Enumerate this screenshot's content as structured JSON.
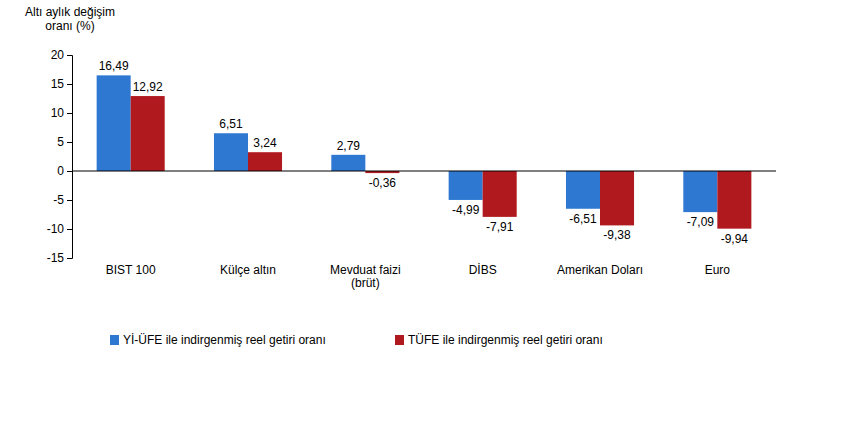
{
  "chart_data": {
    "type": "bar",
    "ylabel": "Altı aylık değişim oranı (%)",
    "categories": [
      "BIST 100",
      "Külçe altın",
      "Mevduat faizi (brüt)",
      "DİBS",
      "Amerikan Doları",
      "Euro"
    ],
    "series": [
      {
        "name": "Yİ-ÜFE ile indirgenmiş reel getiri oranı",
        "color": "#2e78d2",
        "values": [
          16.49,
          6.51,
          2.79,
          -4.99,
          -6.51,
          -7.09
        ],
        "value_labels": [
          "16,49",
          "6,51",
          "2,79",
          "-4,99",
          "-6,51",
          "-7,09"
        ]
      },
      {
        "name": "TÜFE ile indirgenmiş reel getiri oranı",
        "color": "#b0191e",
        "values": [
          12.92,
          3.24,
          -0.36,
          -7.91,
          -9.38,
          -9.94
        ],
        "value_labels": [
          "12,92",
          "3,24",
          "-0,36",
          "-7,91",
          "-9,38",
          "-9,94"
        ]
      }
    ],
    "ylim": [
      -15,
      20
    ],
    "yticks": [
      -15,
      -10,
      -5,
      0,
      5,
      10,
      15,
      20
    ],
    "grid": false,
    "legend": "bottom",
    "data_labels": true
  }
}
